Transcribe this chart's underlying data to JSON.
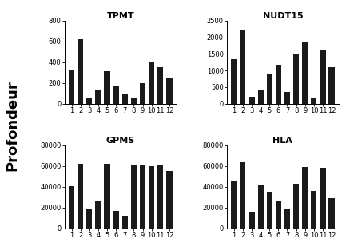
{
  "subplots": [
    {
      "title": "TPMT",
      "values": [
        330,
        620,
        55,
        130,
        315,
        175,
        95,
        50,
        200,
        395,
        350,
        255
      ],
      "ylim": [
        0,
        800
      ],
      "yticks": [
        0,
        200,
        400,
        600,
        800
      ]
    },
    {
      "title": "NUDT15",
      "values": [
        1350,
        2200,
        200,
        420,
        880,
        1180,
        350,
        1480,
        1880,
        155,
        1620,
        1100
      ],
      "ylim": [
        0,
        2500
      ],
      "yticks": [
        0,
        500,
        1000,
        1500,
        2000,
        2500
      ]
    },
    {
      "title": "GPMS",
      "values": [
        41000,
        62000,
        19000,
        27000,
        62000,
        16500,
        12000,
        61000,
        61000,
        60000,
        61000,
        55000
      ],
      "ylim": [
        0,
        80000
      ],
      "yticks": [
        0,
        20000,
        40000,
        60000,
        80000
      ]
    },
    {
      "title": "HLA",
      "values": [
        45000,
        64000,
        16000,
        42000,
        35000,
        26000,
        18000,
        43000,
        59000,
        36000,
        58000,
        29000
      ],
      "ylim": [
        0,
        80000
      ],
      "yticks": [
        0,
        20000,
        40000,
        60000,
        80000
      ]
    }
  ],
  "ylabel": "Profondeur",
  "xticks": [
    1,
    2,
    3,
    4,
    5,
    6,
    7,
    8,
    9,
    10,
    11,
    12
  ],
  "bar_color": "#1a1a1a",
  "background_color": "#ffffff",
  "title_fontsize": 8,
  "axis_fontsize": 6,
  "ylabel_fontsize": 13
}
